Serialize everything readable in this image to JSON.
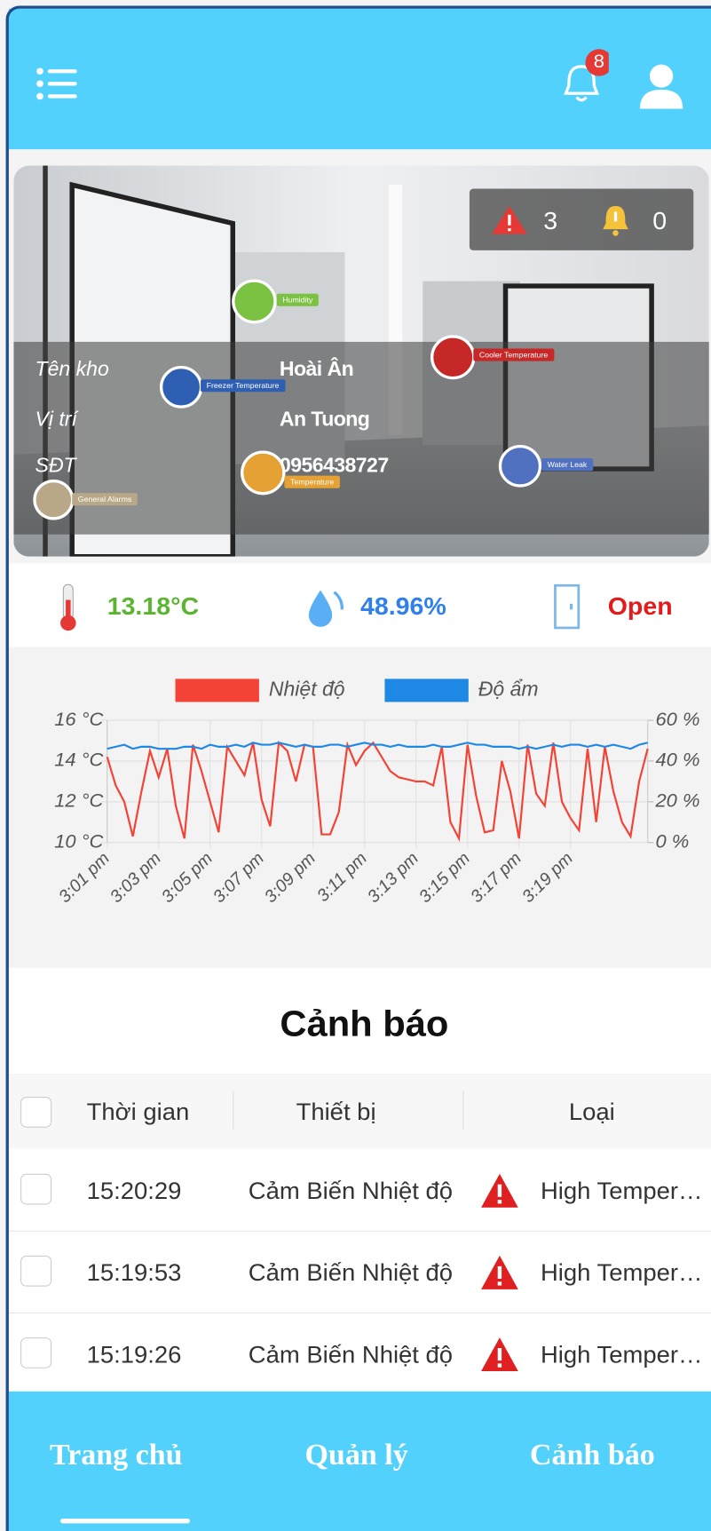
{
  "header": {
    "notification_count": 8
  },
  "banner": {
    "alarm_count": 3,
    "warning_count": 0,
    "fields": [
      {
        "label": "Tên kho",
        "value": "Hoài Ân"
      },
      {
        "label": "Vị trí",
        "value": "An Tuong"
      },
      {
        "label": "SĐT",
        "value": "0956438727"
      }
    ],
    "sensors": [
      "Humidity",
      "Cooler Temperature",
      "Freezer Temperature",
      "Temperature",
      "Water Leak",
      "General Alarms"
    ]
  },
  "stats": {
    "temperature": "13.18°C",
    "humidity": "48.96%",
    "door": "Open"
  },
  "chart_data": {
    "type": "line",
    "categories": [
      "3:01 pm",
      null,
      null,
      null,
      null,
      null,
      "3:03 pm",
      null,
      null,
      null,
      null,
      null,
      "3:05 pm",
      null,
      null,
      null,
      null,
      null,
      "3:07 pm",
      null,
      null,
      null,
      null,
      null,
      "3:09 pm",
      null,
      null,
      null,
      null,
      null,
      "3:11 pm",
      null,
      null,
      null,
      null,
      null,
      "3:13 pm",
      null,
      null,
      null,
      null,
      null,
      "3:15 pm",
      null,
      null,
      null,
      null,
      null,
      "3:17 pm",
      null,
      null,
      null,
      null,
      null,
      "3:19 pm",
      null,
      null,
      null,
      null,
      null,
      null,
      null,
      null,
      null
    ],
    "series": [
      {
        "name": "Nhiệt độ",
        "color": "#f44336",
        "values": [
          14.2,
          12.8,
          12.0,
          10.3,
          12.5,
          14.5,
          13.2,
          14.6,
          11.8,
          10.2,
          14.8,
          13.5,
          12.0,
          10.5,
          14.7,
          14.0,
          13.3,
          14.9,
          12.1,
          10.8,
          14.9,
          14.5,
          13.0,
          14.8,
          14.7,
          10.4,
          10.4,
          11.5,
          14.8,
          13.8,
          14.5,
          14.9,
          14.2,
          13.5,
          13.2,
          13.1,
          13.0,
          13.0,
          12.8,
          14.7,
          11.0,
          10.2,
          14.8,
          12.3,
          10.5,
          10.6,
          14.0,
          12.5,
          10.2,
          14.8,
          12.4,
          11.8,
          14.9,
          12.0,
          11.2,
          10.6,
          14.6,
          11.0,
          14.7,
          12.5,
          11.0,
          10.3,
          13.0,
          14.6
        ]
      },
      {
        "name": "Độ ẩm",
        "color": "#1e88e5",
        "axis": "y2",
        "values": [
          46,
          47,
          48,
          46,
          47,
          47,
          46,
          46,
          46,
          47,
          47,
          46,
          48,
          47,
          47,
          48,
          47,
          49,
          48,
          48,
          49,
          48,
          47,
          48,
          47,
          47,
          48,
          48,
          47,
          48,
          49,
          48,
          48,
          47,
          48,
          47,
          47,
          47,
          48,
          47,
          47,
          48,
          49,
          48,
          48,
          47,
          47,
          47,
          46,
          47,
          46,
          47,
          48,
          47,
          48,
          48,
          47,
          48,
          47,
          48,
          47,
          46,
          48,
          49
        ]
      }
    ],
    "ylim": [
      10,
      16
    ],
    "yticks": [
      {
        "value": 10,
        "label": "10 °C"
      },
      {
        "value": 12,
        "label": "12 °C"
      },
      {
        "value": 14,
        "label": "14 °C"
      },
      {
        "value": 16,
        "label": "16 °C"
      }
    ],
    "y2lim": [
      0,
      60
    ],
    "y2ticks": [
      {
        "value": 0,
        "label": "0 %"
      },
      {
        "value": 20,
        "label": "20 %"
      },
      {
        "value": 40,
        "label": "40 %"
      },
      {
        "value": 60,
        "label": "60 %"
      }
    ],
    "grid": true,
    "legend": "top"
  },
  "alerts": {
    "title": "Cảnh báo",
    "columns": [
      "Thời gian",
      "Thiết bị",
      "Loại"
    ],
    "rows": [
      [
        "15:20:29",
        "Cảm Biến Nhiệt độ",
        "High Temperature"
      ],
      [
        "15:19:53",
        "Cảm Biến Nhiệt độ",
        "High Temperature"
      ],
      [
        "15:19:26",
        "Cảm Biến Nhiệt độ",
        "High Temperature"
      ]
    ]
  },
  "nav": [
    "Trang chủ",
    "Quản lý",
    "Cảnh báo"
  ]
}
